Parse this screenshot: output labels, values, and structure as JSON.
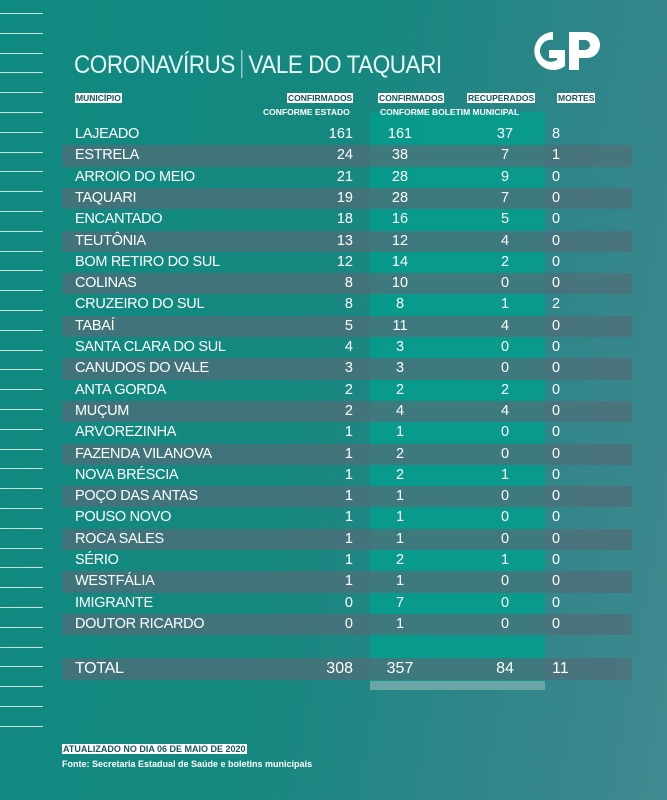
{
  "title": {
    "left": "CORONAVÍRUS",
    "right": "VALE DO TAQUARI"
  },
  "logo": "GP",
  "headers": {
    "municipio": "MUNICÍPIO",
    "confirmados_estado": "CONFIRMADOS",
    "conforme_estado": "CONFORME ESTADO",
    "confirmados_municipal": "CONFIRMADOS",
    "recuperados": "RECUPERADOS",
    "conforme_municipal": "CONFORME BOLETIM MUNICIPAL",
    "mortes": "MORTES"
  },
  "rows": [
    [
      "LAJEADO",
      "161",
      "161",
      "37",
      "8"
    ],
    [
      "ESTRELA",
      "24",
      "38",
      "7",
      "1"
    ],
    [
      "ARROIO DO MEIO",
      "21",
      "28",
      "9",
      "0"
    ],
    [
      "TAQUARI",
      "19",
      "28",
      "7",
      "0"
    ],
    [
      "ENCANTADO",
      "18",
      "16",
      "5",
      "0"
    ],
    [
      "TEUTÔNIA",
      "13",
      "12",
      "4",
      "0"
    ],
    [
      "BOM RETIRO DO SUL",
      "12",
      "14",
      "2",
      "0"
    ],
    [
      "COLINAS",
      "8",
      "10",
      "0",
      "0"
    ],
    [
      "CRUZEIRO DO SUL",
      "8",
      "8",
      "1",
      "2"
    ],
    [
      "TABAÍ",
      "5",
      "11",
      "4",
      "0"
    ],
    [
      "SANTA CLARA DO SUL",
      "4",
      "3",
      "0",
      "0"
    ],
    [
      "CANUDOS DO VALE",
      "3",
      "3",
      "0",
      "0"
    ],
    [
      "ANTA GORDA",
      "2",
      "2",
      "2",
      "0"
    ],
    [
      "MUÇUM",
      "2",
      "4",
      "4",
      "0"
    ],
    [
      "ARVOREZINHA",
      "1",
      "1",
      "0",
      "0"
    ],
    [
      "FAZENDA VILANOVA",
      "1",
      "2",
      "0",
      "0"
    ],
    [
      "NOVA BRÉSCIA",
      "1",
      "2",
      "1",
      "0"
    ],
    [
      "POÇO DAS ANTAS",
      "1",
      "1",
      "0",
      "0"
    ],
    [
      "POUSO NOVO",
      "1",
      "1",
      "0",
      "0"
    ],
    [
      "ROCA SALES",
      "1",
      "1",
      "0",
      "0"
    ],
    [
      "SÉRIO",
      "1",
      "2",
      "1",
      "0"
    ],
    [
      "WESTFÁLIA",
      "1",
      "1",
      "0",
      "0"
    ],
    [
      "IMIGRANTE",
      "0",
      "7",
      "0",
      "0"
    ],
    [
      "DOUTOR RICARDO",
      "0",
      "1",
      "0",
      "0"
    ]
  ],
  "total": [
    "TOTAL",
    "308",
    "357",
    "84",
    "11"
  ],
  "footer": {
    "updated": "ATUALIZADO NO DIA 06 DE MAIO DE 2020",
    "source": "Fonte: Secretaria Estadual de Saúde e boletins municipais"
  }
}
